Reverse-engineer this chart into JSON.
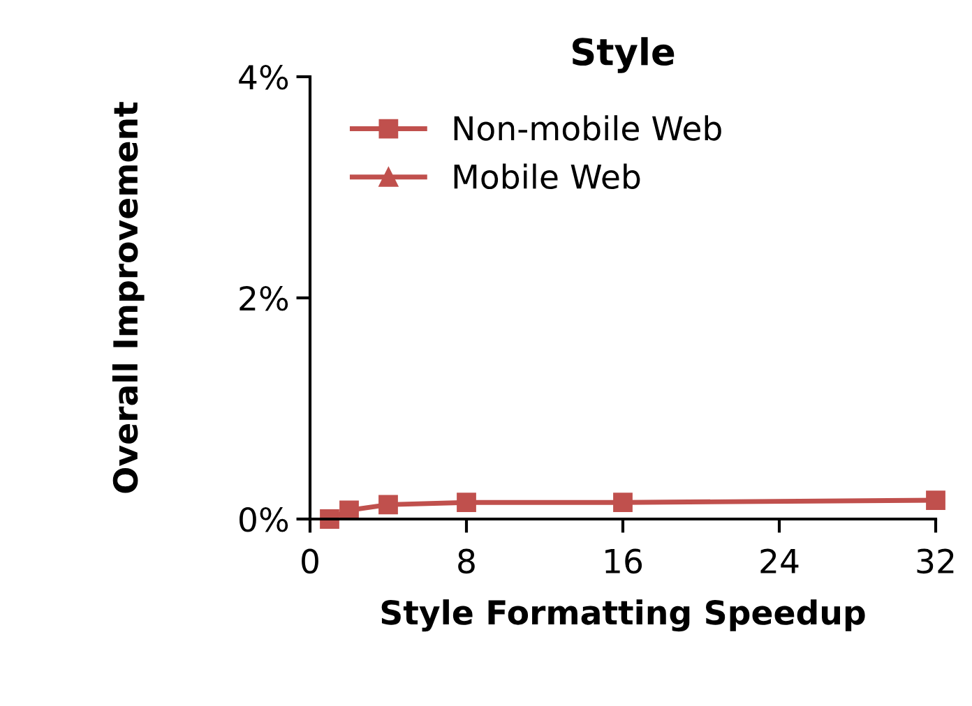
{
  "chart_data": {
    "type": "line",
    "title": "Style",
    "xlabel": "Style Formatting Speedup",
    "ylabel": "Overall Improvement",
    "x": [
      1,
      2,
      4,
      8,
      16,
      32
    ],
    "series": [
      {
        "name": "Non-mobile Web",
        "color": "#c0504d",
        "marker": "square",
        "values": [
          0,
          0.08,
          0.13,
          0.15,
          0.15,
          0.17
        ]
      },
      {
        "name": "Mobile Web",
        "color": "#c0504d",
        "marker": "triangle",
        "values": [
          null,
          null,
          null,
          null,
          null,
          null
        ]
      }
    ],
    "xlim": [
      0,
      32
    ],
    "xticks": [
      0,
      8,
      16,
      24,
      32
    ],
    "ylim": [
      0,
      4
    ],
    "yticks": [
      {
        "value": 0,
        "label": "0%"
      },
      {
        "value": 2,
        "label": "2%"
      },
      {
        "value": 4,
        "label": "4%"
      }
    ],
    "grid": false,
    "legend": "top left"
  }
}
